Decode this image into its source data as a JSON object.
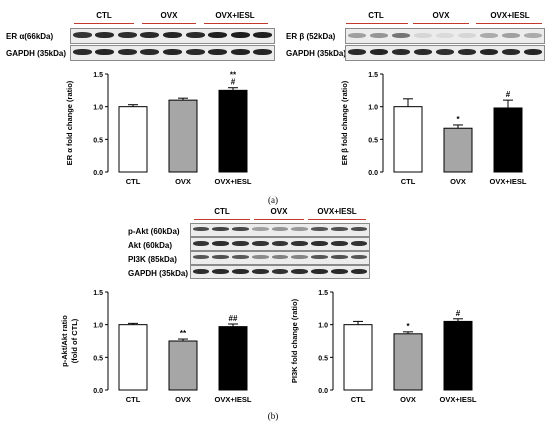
{
  "panel_a": {
    "caption": "(a)",
    "er_alpha": {
      "groups": [
        "CTL",
        "OVX",
        "OVX+IESL"
      ],
      "rows": [
        "ER α(66kDa)",
        "GAPDH (35kDa)"
      ]
    },
    "er_beta": {
      "groups": [
        "CTL",
        "OVX",
        "OVX+IESL"
      ],
      "rows": [
        "ER β (52kDa)",
        "GAPDH (35kDa)"
      ]
    }
  },
  "panel_b": {
    "caption": "(b)",
    "akt_pi3k": {
      "groups": [
        "CTL",
        "OVX",
        "OVX+IESL"
      ],
      "rows": [
        "p-Akt (60kDa)",
        "Akt (60kDa)",
        "PI3K (85kDa)",
        "GAPDH (35kDa)"
      ]
    }
  },
  "chart_data": [
    {
      "type": "bar",
      "categories": [
        "CTL",
        "OVX",
        "OVX+IESL"
      ],
      "values": [
        1.0,
        1.1,
        1.25
      ],
      "errors": [
        0.03,
        0.03,
        0.04
      ],
      "significance": [
        "",
        "",
        "**\n#"
      ],
      "ylabel": "ER α fold change (ratio)",
      "ylim": [
        0,
        1.5
      ],
      "yticks": [
        "0.0",
        "0.5",
        "1.0",
        "1.5"
      ],
      "bar_colors": [
        "#ffffff",
        "#a6a6a6",
        "#000000"
      ]
    },
    {
      "type": "bar",
      "categories": [
        "CTL",
        "OVX",
        "OVX+IESL"
      ],
      "values": [
        1.0,
        0.67,
        0.98
      ],
      "errors": [
        0.12,
        0.05,
        0.12
      ],
      "significance": [
        "",
        "*",
        "#"
      ],
      "ylabel": "ER β fold change (ratio)",
      "ylim": [
        0,
        1.5
      ],
      "yticks": [
        "0.0",
        "0.5",
        "1.0",
        "1.5"
      ],
      "bar_colors": [
        "#ffffff",
        "#a6a6a6",
        "#000000"
      ]
    },
    {
      "type": "bar",
      "categories": [
        "CTL",
        "OVX",
        "OVX+IESL"
      ],
      "values": [
        1.0,
        0.75,
        0.97
      ],
      "errors": [
        0.02,
        0.03,
        0.04
      ],
      "significance": [
        "",
        "**",
        "##"
      ],
      "ylabel": "p-Akt/Akt ratio\n(fold of CTL)",
      "ylim": [
        0,
        1.5
      ],
      "yticks": [
        "0.0",
        "0.5",
        "1.0",
        "1.5"
      ],
      "bar_colors": [
        "#ffffff",
        "#a6a6a6",
        "#000000"
      ]
    },
    {
      "type": "bar",
      "categories": [
        "CTL",
        "OVX",
        "OVX+IESL"
      ],
      "values": [
        1.0,
        0.86,
        1.05
      ],
      "errors": [
        0.05,
        0.03,
        0.04
      ],
      "significance": [
        "",
        "*",
        "#"
      ],
      "ylabel": "PI3K fold change (ratio)",
      "ylim": [
        0,
        1.5
      ],
      "yticks": [
        "0.0",
        "0.5",
        "1.0",
        "1.5"
      ],
      "bar_colors": [
        "#ffffff",
        "#a6a6a6",
        "#000000"
      ]
    }
  ]
}
